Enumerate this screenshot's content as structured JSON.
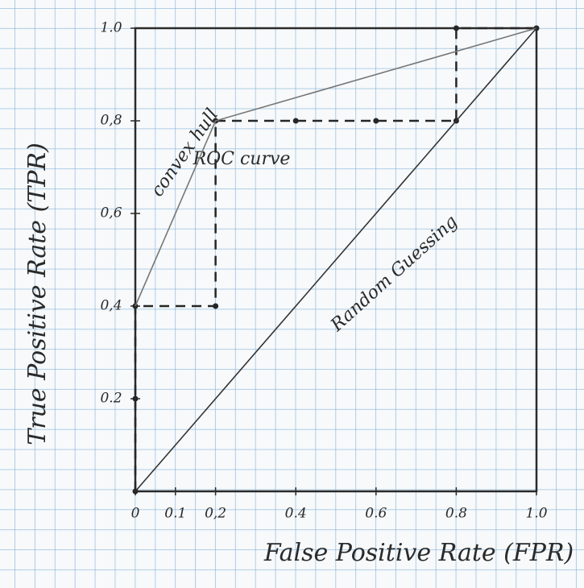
{
  "chart_data": {
    "type": "line",
    "xlabel": "False Positive Rate (FPR)",
    "ylabel": "True Positive Rate (TPR)",
    "xlim": [
      0,
      1
    ],
    "ylim": [
      0,
      1
    ],
    "xticks": [
      0,
      0.1,
      {
        "value": 0.2,
        "label": "0,2"
      },
      0.4,
      0.6,
      0.8,
      {
        "value": 1,
        "label": "1.0"
      }
    ],
    "yticks": [
      0.2,
      {
        "value": 0.4,
        "label": "0,4"
      },
      {
        "value": 0.6,
        "label": "0,6"
      },
      {
        "value": 0.8,
        "label": "0,8"
      },
      {
        "value": 1,
        "label": "1.0"
      }
    ],
    "series": [
      {
        "name": "ROC curve",
        "color": "#262626",
        "dashed": true,
        "markers": true,
        "x": [
          0,
          0,
          0,
          0.2,
          0.2,
          0.4,
          0.6,
          0.8,
          0.8,
          1
        ],
        "values": [
          0,
          0.2,
          0.4,
          0.4,
          0.8,
          0.8,
          0.8,
          0.8,
          1,
          1
        ]
      },
      {
        "name": "convex hull",
        "color": "#777777",
        "dashed": false,
        "markers": false,
        "x": [
          0,
          0.2,
          1
        ],
        "values": [
          0.4,
          0.8,
          1
        ]
      },
      {
        "name": "Random Guessing",
        "color": "#333333",
        "dashed": false,
        "markers": false,
        "x": [
          0,
          1
        ],
        "values": [
          0,
          1
        ]
      }
    ]
  }
}
